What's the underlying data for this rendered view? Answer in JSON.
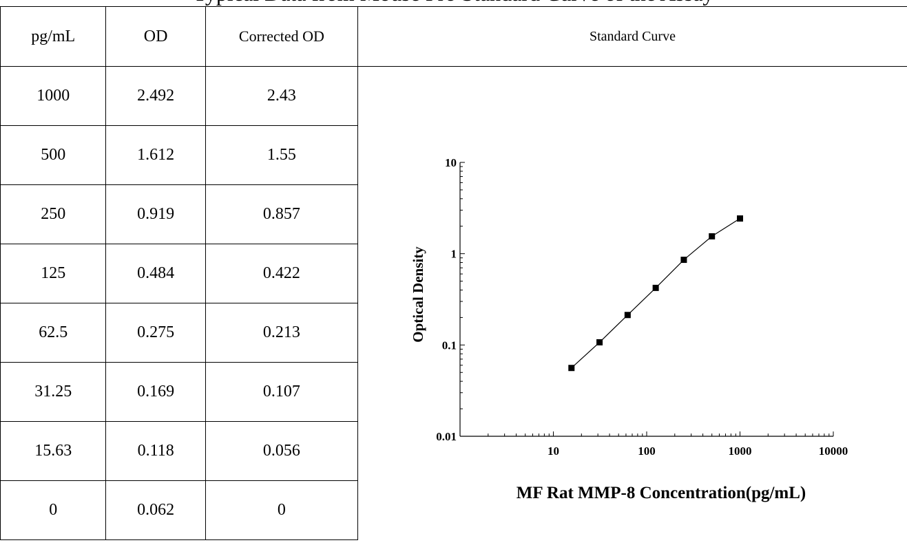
{
  "top_text": "Typical Data from Mouse Pro Standard Curve of the Assay",
  "table": {
    "headers": [
      "pg/mL",
      "OD",
      "Corrected OD"
    ],
    "curve_header": "Standard Curve",
    "rows": [
      [
        "1000",
        "2.492",
        "2.43"
      ],
      [
        "500",
        "1.612",
        "1.55"
      ],
      [
        "250",
        "0.919",
        "0.857"
      ],
      [
        "125",
        "0.484",
        "0.422"
      ],
      [
        "62.5",
        "0.275",
        "0.213"
      ],
      [
        "31.25",
        "0.169",
        "0.107"
      ],
      [
        "15.63",
        "0.118",
        "0.056"
      ],
      [
        "0",
        "0.062",
        "0"
      ]
    ]
  },
  "chart_data": {
    "type": "scatter",
    "title": "",
    "xlabel": "MF Rat MMP-8 Concentration(pg/mL)",
    "ylabel": "Optical Density",
    "x_scale": "log",
    "y_scale": "log",
    "xlim": [
      1,
      10000
    ],
    "ylim": [
      0.01,
      10
    ],
    "x_ticks": [
      "10",
      "100",
      "1000",
      "10000"
    ],
    "y_ticks": [
      "0.01",
      "0.1",
      "1",
      "10"
    ],
    "grid": false,
    "legend": "none",
    "fit_line": true,
    "series": [
      {
        "x": [
          15.63,
          31.25,
          62.5,
          125,
          250,
          500,
          1000
        ],
        "y": [
          0.056,
          0.107,
          0.213,
          0.422,
          0.857,
          1.55,
          2.43
        ]
      }
    ],
    "marker_color": "#000000",
    "line_color": "#000000"
  }
}
